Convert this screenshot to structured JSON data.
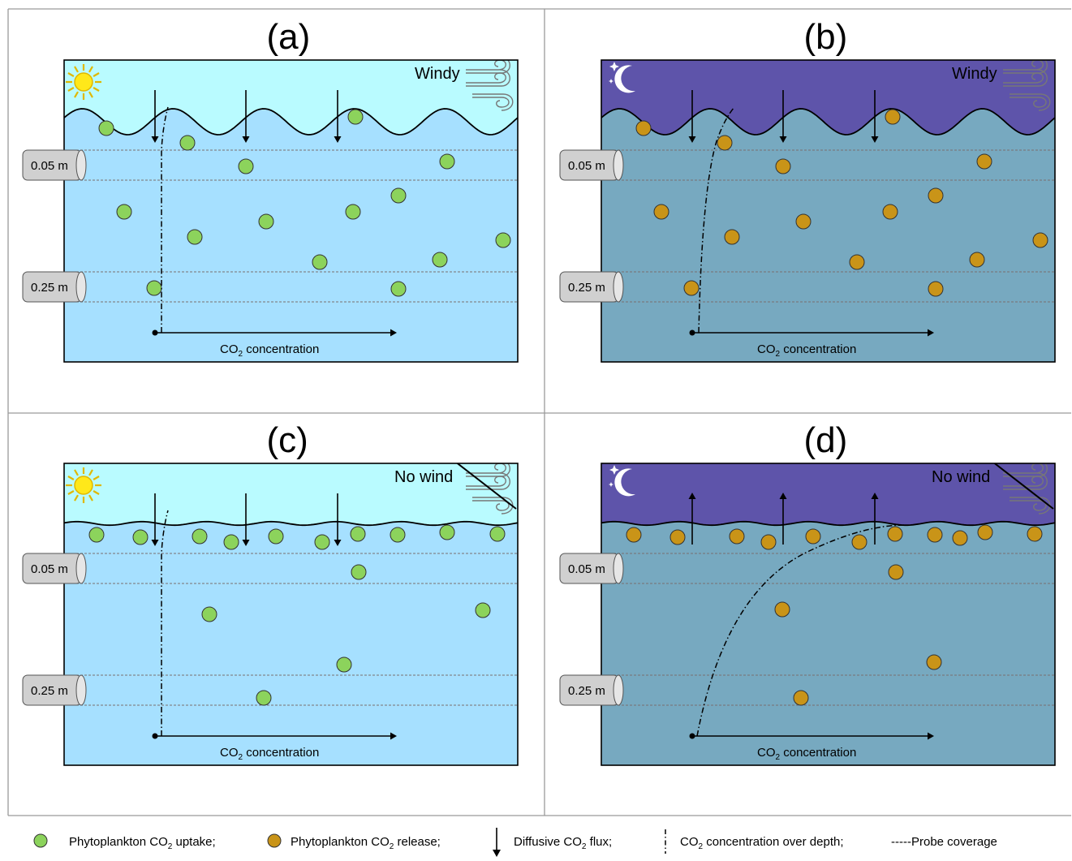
{
  "colors": {
    "sky_day": "#b9fbff",
    "sky_night": "#5e54aa",
    "water_day": "#a6e0ff",
    "water_night": "#77a9c0",
    "phyto_uptake": "#8cd35c",
    "phyto_release": "#c99418",
    "sun": "#ffe81a",
    "moon": "#ffffff"
  },
  "icons": [
    "sun-icon",
    "moon-icon",
    "stars-icon",
    "wind-icon",
    "wind-crossed-icon"
  ],
  "panels": [
    {
      "id": "a",
      "label": "(a)",
      "wind": "Windy",
      "time": "day",
      "sea": "wavy",
      "flux": "down",
      "profile": "day",
      "depths": [
        "0.05 m",
        "0.25 m"
      ],
      "axis_label": "CO",
      "axis_sub": "2",
      "axis_rest": " concentration"
    },
    {
      "id": "b",
      "label": "(b)",
      "wind": "Windy",
      "time": "night",
      "sea": "wavy",
      "flux": "down",
      "profile": "night_windy",
      "depths": [
        "0.05 m",
        "0.25 m"
      ],
      "axis_label": "CO",
      "axis_sub": "2",
      "axis_rest": " concentration"
    },
    {
      "id": "c",
      "label": "(c)",
      "wind": "No wind",
      "time": "day",
      "sea": "calm",
      "flux": "down",
      "profile": "day",
      "depths": [
        "0.05 m",
        "0.25 m"
      ],
      "axis_label": "CO",
      "axis_sub": "2",
      "axis_rest": " concentration"
    },
    {
      "id": "d",
      "label": "(d)",
      "wind": "No wind",
      "time": "night",
      "sea": "calm",
      "flux": "up",
      "profile": "night_calm",
      "depths": [
        "0.05 m",
        "0.25 m"
      ],
      "axis_label": "CO",
      "axis_sub": "2",
      "axis_rest": " concentration"
    }
  ],
  "legend": {
    "uptake": {
      "pre": "Phytoplankton CO",
      "sub": "2",
      "post": " uptake;"
    },
    "release": {
      "pre": "Phytoplankton CO",
      "sub": "2",
      "post": " release;"
    },
    "flux": {
      "pre": "Diffusive CO",
      "sub": "2",
      "post": " flux;"
    },
    "profile": {
      "pre": "CO",
      "sub": "2",
      "post": " concentration over depth;"
    },
    "probe": {
      "pre": "-----",
      "sub": "",
      "post": "Probe coverage"
    }
  }
}
